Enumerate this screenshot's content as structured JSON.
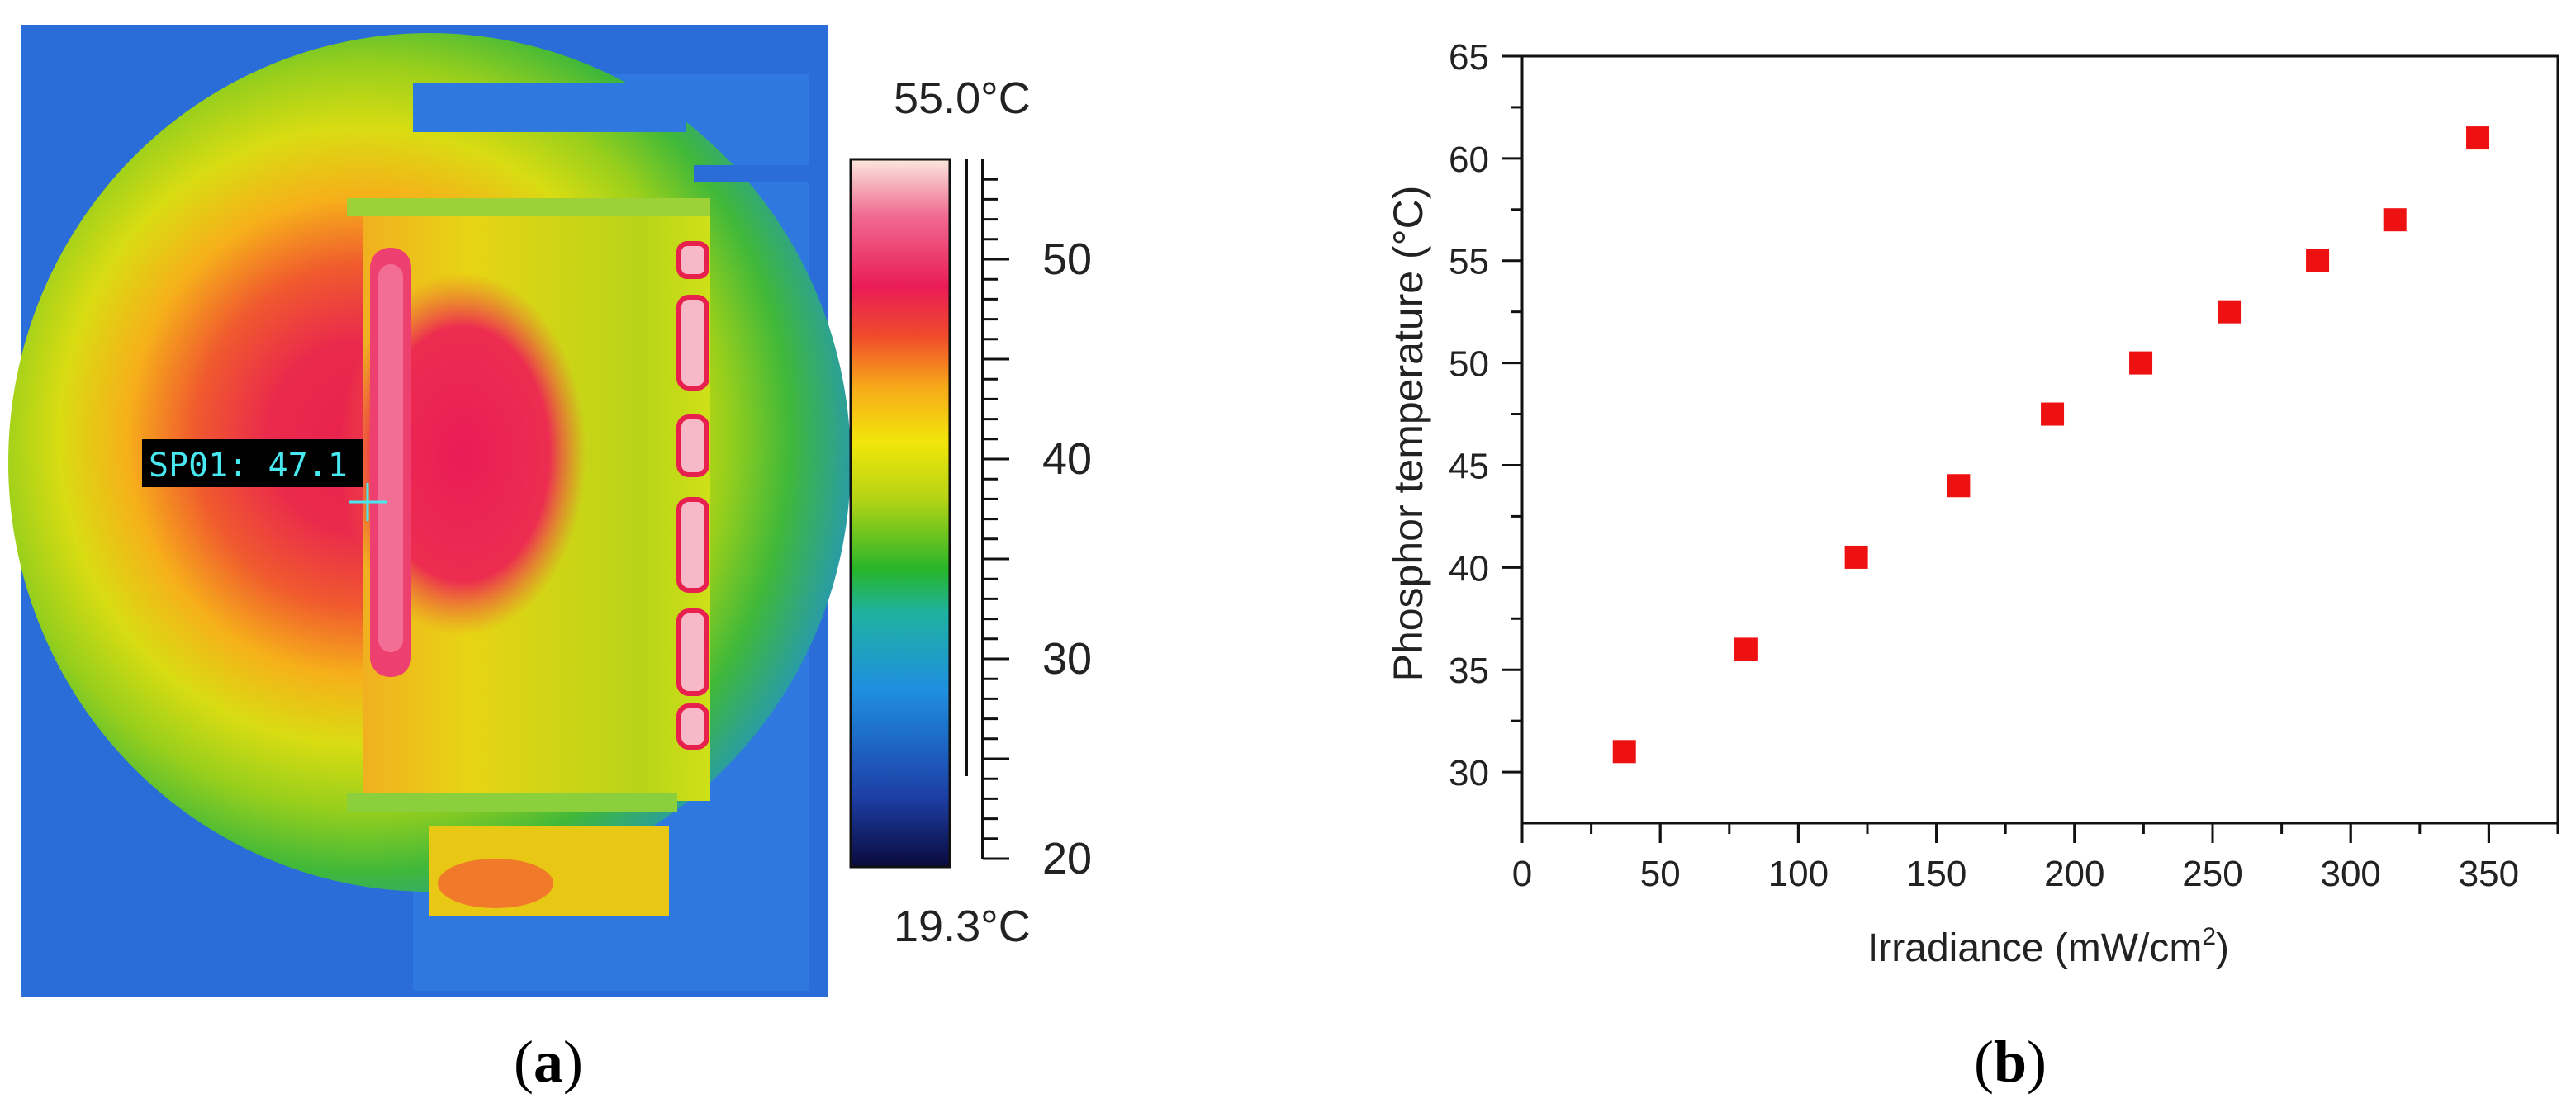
{
  "panels": {
    "a": {
      "label": "a"
    },
    "b": {
      "label": "b"
    }
  },
  "thermal": {
    "spot_label": "SP01:",
    "spot_value": "47.1",
    "scale_max": "55.0°C",
    "scale_min": "19.3°C",
    "colorbar_ticks": [
      "50",
      "40",
      "30",
      "20"
    ],
    "colorbar_tick_values": [
      50,
      40,
      30,
      20
    ],
    "colorbar_range": [
      19.3,
      55.0
    ],
    "colorbar_colors": [
      "#0a0a3c",
      "#1d3fa6",
      "#1f8fe0",
      "#1fb2a0",
      "#27b52a",
      "#b5d414",
      "#f2e60a",
      "#f7a81a",
      "#ef4b2a",
      "#ea1c57",
      "#f06a90",
      "#fbe8de"
    ],
    "spot_color": "#47e8f0"
  },
  "chart_data": {
    "type": "scatter",
    "xlabel": "Irradiance (mW/cm",
    "xlabel_sup": "2",
    "xlabel_end": ")",
    "ylabel": "Phosphor temperature (°C)",
    "xlim": [
      0,
      375
    ],
    "ylim": [
      27.5,
      65
    ],
    "x_ticks": [
      0,
      50,
      100,
      150,
      200,
      250,
      300,
      350
    ],
    "y_ticks": [
      30,
      35,
      40,
      45,
      50,
      55,
      60,
      65
    ],
    "series": [
      {
        "marker_color": "#ee1111",
        "x": [
          37,
          81,
          121,
          158,
          192,
          224,
          256,
          288,
          316,
          346
        ],
        "y": [
          31,
          36,
          40.5,
          44,
          47.5,
          50,
          52.5,
          55,
          57,
          61
        ]
      }
    ]
  }
}
